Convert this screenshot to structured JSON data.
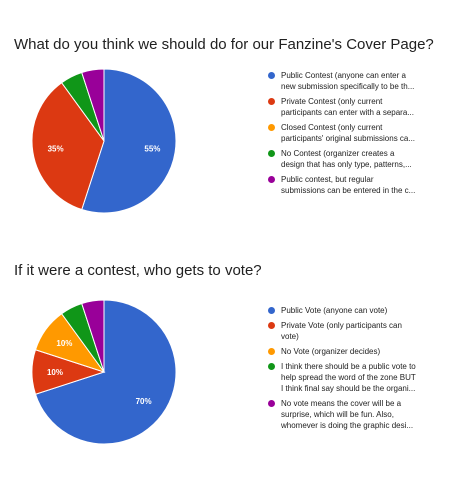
{
  "chart_data": [
    {
      "type": "pie",
      "title": "What do you think we should do for our Fanzine's Cover Page?",
      "slices": [
        {
          "lines": [
            "Public Contest (anyone can enter a",
            "new submission specifically to be th..."
          ],
          "value": 55,
          "label": "55%",
          "color": "#3366cc"
        },
        {
          "lines": [
            "Private Contest (only current",
            "participants can enter with a separa..."
          ],
          "value": 35,
          "label": "35%",
          "color": "#dc3912"
        },
        {
          "lines": [
            "Closed Contest (only current",
            "participants' original submissions ca..."
          ],
          "value": 0,
          "label": "",
          "color": "#ff9900"
        },
        {
          "lines": [
            "No Contest (organizer creates a",
            "design that has only type, patterns,..."
          ],
          "value": 5,
          "label": "",
          "color": "#109618"
        },
        {
          "lines": [
            "Public contest, but regular",
            "submissions can be entered in the c..."
          ],
          "value": 5,
          "label": "",
          "color": "#990099"
        }
      ],
      "legend_position": "right"
    },
    {
      "type": "pie",
      "title": "If it were a contest, who gets to vote?",
      "slices": [
        {
          "lines": [
            "Public Vote (anyone can vote)"
          ],
          "value": 70,
          "label": "70%",
          "color": "#3366cc"
        },
        {
          "lines": [
            "Private Vote (only participants can",
            "vote)"
          ],
          "value": 10,
          "label": "10%",
          "color": "#dc3912"
        },
        {
          "lines": [
            "No Vote (organizer decides)"
          ],
          "value": 10,
          "label": "10%",
          "color": "#ff9900"
        },
        {
          "lines": [
            "I think there should be a public vote to",
            "help spread the word of the zone BUT",
            "I think final say should be the organi..."
          ],
          "value": 5,
          "label": "",
          "color": "#109618"
        },
        {
          "lines": [
            "No vote means the cover will be a",
            "surprise, which will be fun. Also,",
            "whomever is doing the graphic desi..."
          ],
          "value": 5,
          "label": "",
          "color": "#990099"
        }
      ],
      "legend_position": "right"
    }
  ]
}
